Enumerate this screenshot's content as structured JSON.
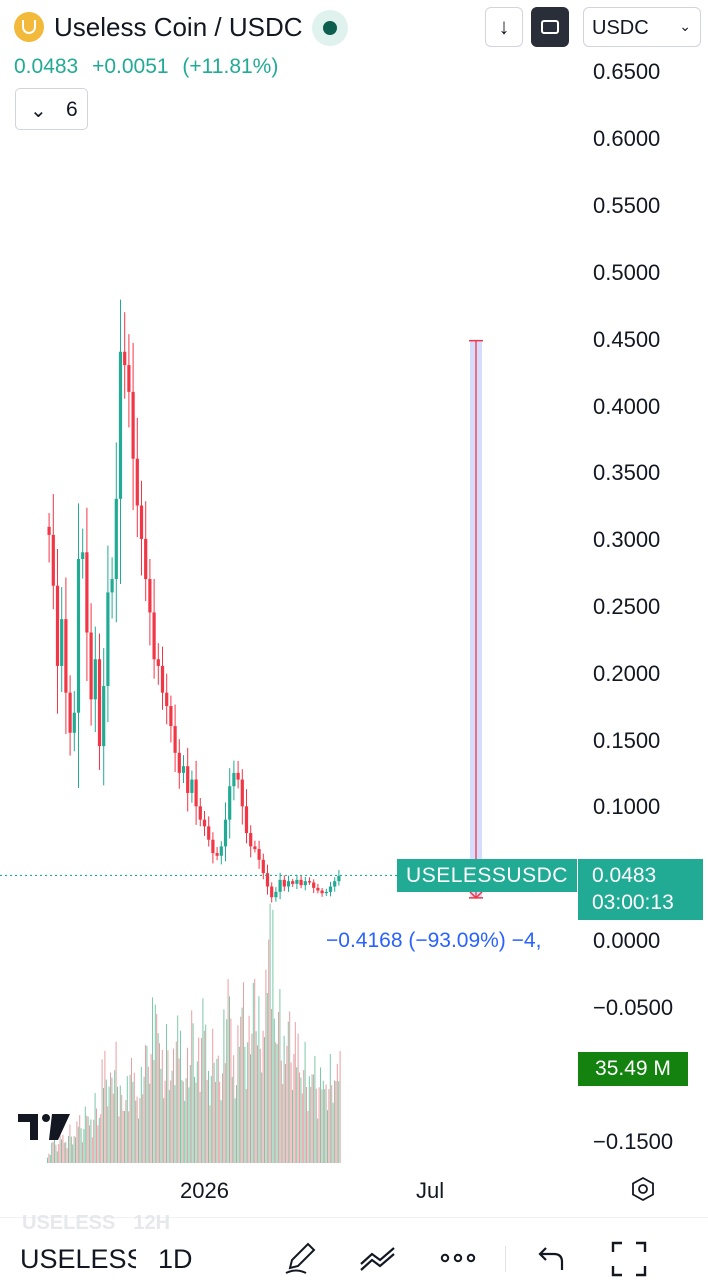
{
  "header": {
    "title": "Useless Coin / USDC",
    "logo_icon": "useless-coin-logo-icon",
    "status_icon": "market-open-dot-icon",
    "down_icon": "arrow-down-icon",
    "mode_icon": "chart-mode-icon",
    "currency": "USDC",
    "currency_icon": "chevron-down-icon"
  },
  "price_line": {
    "price": "0.0483",
    "change": "+0.0051",
    "change_pct": "(+11.81%)"
  },
  "indicators": {
    "count": "6",
    "icon": "chevron-down-icon"
  },
  "labels": {
    "pair": "USELESSUSDC",
    "last_price": "0.0483",
    "countdown": "03:00:13",
    "volume": "35.49 M",
    "measure": "−0.4168 (−93.09%) −4,"
  },
  "x_axis": {
    "tick_2026": "2026",
    "tick_jul": "Jul"
  },
  "colors": {
    "up": "#22ab94",
    "down": "#f23645",
    "volume_up": "#7cc8a8",
    "volume_down": "#e8a0a5",
    "measure_fill": "#d6dcfb",
    "measure_line": "#f23645",
    "volume_tag": "#13820f",
    "measure_text": "#2962ff"
  },
  "chart_data": {
    "type": "candlestick",
    "symbol": "USELESSUSDC",
    "interval": "12H",
    "price_axis_ticks": [
      "0.6500",
      "0.6000",
      "0.5500",
      "0.5000",
      "0.4500",
      "0.4000",
      "0.3500",
      "0.3000",
      "0.2500",
      "0.2000",
      "0.1500",
      "0.1000",
      "0.0000",
      "−0.0500",
      "−0.1500"
    ],
    "ylim": [
      -0.17,
      0.67
    ],
    "x_ticks": [
      "2026",
      "Jul"
    ],
    "last_price": 0.0483,
    "change": 0.0051,
    "change_pct": 11.81,
    "countdown": "03:00:13",
    "last_volume": "35.49 M",
    "measure": {
      "from": 0.4483,
      "to": 0.0315,
      "change": -0.4168,
      "change_pct": -93.09
    },
    "price_series": [
      0.303,
      0.265,
      0.205,
      0.24,
      0.185,
      0.155,
      0.17,
      0.285,
      0.29,
      0.23,
      0.18,
      0.21,
      0.145,
      0.19,
      0.26,
      0.27,
      0.33,
      0.44,
      0.43,
      0.41,
      0.36,
      0.325,
      0.3,
      0.27,
      0.245,
      0.21,
      0.205,
      0.185,
      0.175,
      0.16,
      0.14,
      0.125,
      0.13,
      0.11,
      0.12,
      0.1,
      0.09,
      0.085,
      0.075,
      0.065,
      0.063,
      0.07,
      0.09,
      0.115,
      0.125,
      0.12,
      0.1,
      0.08,
      0.07,
      0.068,
      0.06,
      0.05,
      0.04,
      0.032,
      0.036,
      0.045,
      0.04,
      0.044,
      0.042,
      0.045,
      0.041,
      0.044,
      0.043,
      0.039,
      0.037,
      0.035,
      0.036,
      0.04,
      0.044,
      0.048
    ],
    "volume_series": [
      3,
      8,
      6,
      10,
      7,
      12,
      9,
      15,
      11,
      18,
      14,
      22,
      16,
      35,
      26,
      30,
      38,
      25,
      20,
      28,
      33,
      22,
      30,
      40,
      34,
      52,
      48,
      36,
      44,
      30,
      38,
      46,
      28,
      36,
      50,
      32,
      40,
      52,
      30,
      42,
      36,
      28,
      48,
      60,
      34,
      44,
      58,
      38,
      46,
      62,
      52,
      44,
      70,
      82,
      46,
      56,
      40,
      50,
      34,
      44,
      30,
      38,
      28,
      34,
      24,
      30,
      26,
      34,
      28,
      35
    ]
  }
}
